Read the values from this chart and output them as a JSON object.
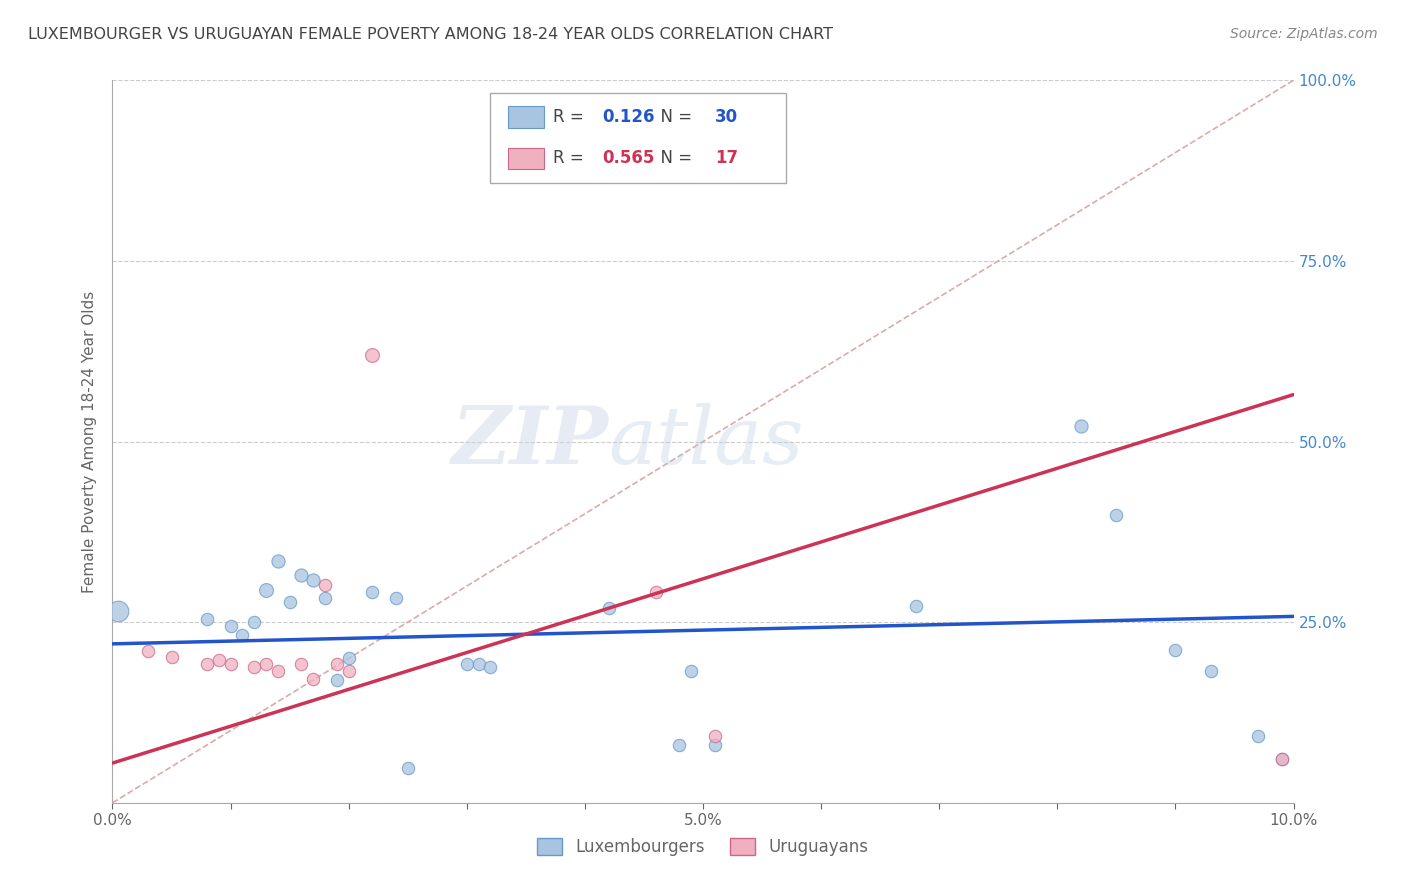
{
  "title": "LUXEMBOURGER VS URUGUAYAN FEMALE POVERTY AMONG 18-24 YEAR OLDS CORRELATION CHART",
  "source": "Source: ZipAtlas.com",
  "ylabel": "Female Poverty Among 18-24 Year Olds",
  "xlim": [
    0.0,
    0.1
  ],
  "ylim": [
    0.0,
    1.0
  ],
  "ytick_labels": [
    "",
    "25.0%",
    "50.0%",
    "75.0%",
    "100.0%"
  ],
  "ytick_vals": [
    0.0,
    0.25,
    0.5,
    0.75,
    1.0
  ],
  "xtick_labels": [
    "0.0%",
    "",
    "",
    "",
    "",
    "5.0%",
    "",
    "",
    "",
    "",
    "10.0%"
  ],
  "xtick_vals": [
    0.0,
    0.01,
    0.02,
    0.03,
    0.04,
    0.05,
    0.06,
    0.07,
    0.08,
    0.09,
    0.1
  ],
  "blue_R": "0.126",
  "blue_N": "30",
  "pink_R": "0.565",
  "pink_N": "17",
  "blue_color": "#a8c4e0",
  "pink_color": "#f0b0c0",
  "blue_line_color": "#2255cc",
  "pink_line_color": "#cc3355",
  "diagonal_color": "#ddaaaa",
  "background_color": "#ffffff",
  "watermark_zip": "ZIP",
  "watermark_atlas": "atlas",
  "lux_points": [
    [
      0.0005,
      0.265,
      220
    ],
    [
      0.008,
      0.255,
      80
    ],
    [
      0.01,
      0.245,
      80
    ],
    [
      0.011,
      0.232,
      80
    ],
    [
      0.012,
      0.25,
      80
    ],
    [
      0.013,
      0.295,
      100
    ],
    [
      0.014,
      0.335,
      90
    ],
    [
      0.015,
      0.278,
      80
    ],
    [
      0.016,
      0.315,
      90
    ],
    [
      0.017,
      0.308,
      90
    ],
    [
      0.018,
      0.283,
      80
    ],
    [
      0.019,
      0.17,
      80
    ],
    [
      0.02,
      0.2,
      80
    ],
    [
      0.022,
      0.292,
      80
    ],
    [
      0.024,
      0.283,
      80
    ],
    [
      0.025,
      0.048,
      80
    ],
    [
      0.03,
      0.192,
      80
    ],
    [
      0.031,
      0.192,
      80
    ],
    [
      0.032,
      0.188,
      80
    ],
    [
      0.042,
      0.27,
      80
    ],
    [
      0.048,
      0.08,
      80
    ],
    [
      0.049,
      0.182,
      80
    ],
    [
      0.051,
      0.08,
      80
    ],
    [
      0.068,
      0.272,
      80
    ],
    [
      0.082,
      0.522,
      90
    ],
    [
      0.085,
      0.398,
      80
    ],
    [
      0.09,
      0.212,
      80
    ],
    [
      0.093,
      0.182,
      80
    ],
    [
      0.097,
      0.092,
      80
    ],
    [
      0.099,
      0.06,
      80
    ]
  ],
  "uru_points": [
    [
      0.003,
      0.21,
      80
    ],
    [
      0.005,
      0.202,
      80
    ],
    [
      0.008,
      0.192,
      80
    ],
    [
      0.009,
      0.198,
      80
    ],
    [
      0.01,
      0.192,
      80
    ],
    [
      0.012,
      0.188,
      80
    ],
    [
      0.013,
      0.192,
      80
    ],
    [
      0.014,
      0.182,
      80
    ],
    [
      0.016,
      0.192,
      80
    ],
    [
      0.017,
      0.172,
      80
    ],
    [
      0.018,
      0.302,
      80
    ],
    [
      0.019,
      0.192,
      80
    ],
    [
      0.02,
      0.182,
      80
    ],
    [
      0.022,
      0.62,
      100
    ],
    [
      0.046,
      0.292,
      80
    ],
    [
      0.051,
      0.092,
      80
    ],
    [
      0.099,
      0.06,
      80
    ]
  ],
  "blue_line_x": [
    0.0,
    0.1
  ],
  "blue_line_y": [
    0.22,
    0.258
  ],
  "pink_line_x": [
    0.0,
    0.1
  ],
  "pink_line_y": [
    0.055,
    0.565
  ]
}
